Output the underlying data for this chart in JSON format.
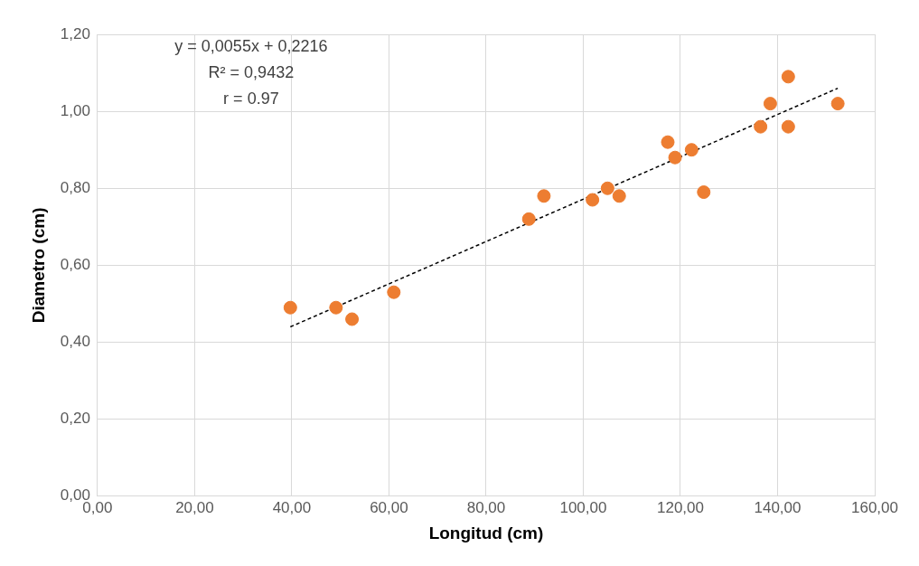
{
  "chart_data": {
    "type": "scatter",
    "xlabel": "Longitud (cm)",
    "ylabel": "Diametro (cm)",
    "annotations": [
      "y = 0,0055x + 0,2216",
      "R² = 0,9432",
      "r = 0.97"
    ],
    "series": [
      {
        "type": "scatter",
        "color": "#ed7d31",
        "marker": "circle",
        "x": [
          39.7,
          49.1,
          52.4,
          61.0,
          88.8,
          91.9,
          101.9,
          105.0,
          107.4,
          117.4,
          118.9,
          122.3,
          124.8,
          136.5,
          138.5,
          142.2,
          142.2,
          152.4
        ],
        "values": [
          0.49,
          0.49,
          0.46,
          0.53,
          0.72,
          0.78,
          0.77,
          0.8,
          0.78,
          0.92,
          0.88,
          0.9,
          0.79,
          0.96,
          1.02,
          1.09,
          0.96,
          1.02
        ]
      },
      {
        "type": "line",
        "color": "#000000",
        "marker": "none",
        "line_style": "dashed",
        "x": [
          39.7,
          152.4
        ],
        "values": [
          0.44,
          1.06
        ]
      }
    ],
    "xlim": [
      0,
      160
    ],
    "xticks": [
      {
        "value": 0,
        "label": "0,00"
      },
      {
        "value": 20,
        "label": "20,00"
      },
      {
        "value": 40,
        "label": "40,00"
      },
      {
        "value": 60,
        "label": "60,00"
      },
      {
        "value": 80,
        "label": "80,00"
      },
      {
        "value": 100,
        "label": "100,00"
      },
      {
        "value": 120,
        "label": "120,00"
      },
      {
        "value": 140,
        "label": "140,00"
      },
      {
        "value": 160,
        "label": "160,00"
      }
    ],
    "ylim": [
      0,
      1.2
    ],
    "yticks": [
      {
        "value": 0,
        "label": "0,00"
      },
      {
        "value": 0.2,
        "label": "0,20"
      },
      {
        "value": 0.4,
        "label": "0,40"
      },
      {
        "value": 0.6,
        "label": "0,60"
      },
      {
        "value": 0.8,
        "label": "0,80"
      },
      {
        "value": 1.0,
        "label": "1,00"
      },
      {
        "value": 1.2,
        "label": "1,20"
      }
    ],
    "grid": true,
    "legend": false
  }
}
